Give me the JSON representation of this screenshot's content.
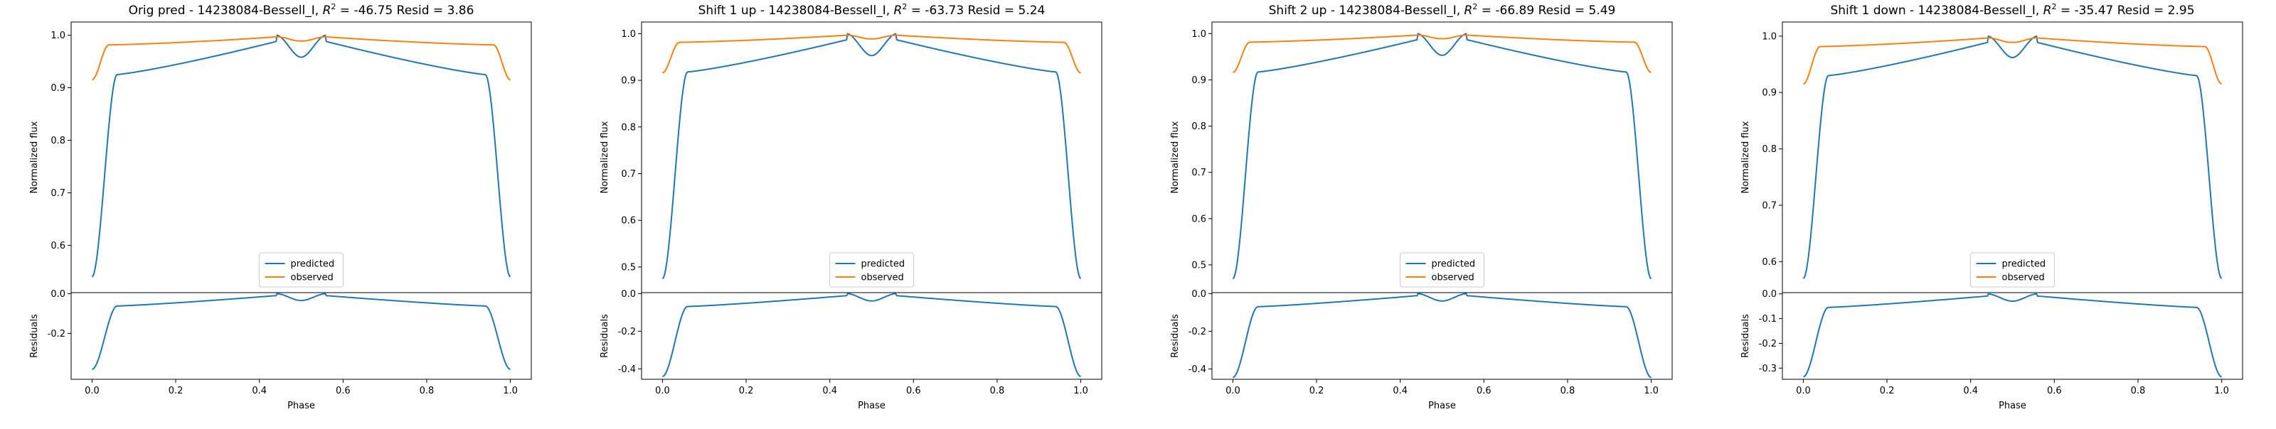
{
  "colors": {
    "predicted": "#1f77b4",
    "observed": "#ff7f0e"
  },
  "chart_data": [
    {
      "type": "line",
      "title_text": "Orig pred - 14238084-Bessell_I, ",
      "title_r2": "R",
      "title_sup": "2",
      "title_tail": " = -46.75 Resid = 3.86",
      "xlabel": "Phase",
      "ylabel": "Normalized flux",
      "ylabel_resid": "Residuals",
      "legend": [
        "predicted",
        "observed"
      ],
      "legend_position": "lower-center",
      "xlim": [
        -0.05,
        1.05
      ],
      "ylim": [
        0.51,
        1.025
      ],
      "ylim_resid": [
        -0.43,
        0.005
      ],
      "xticks": [
        "0.0",
        "0.2",
        "0.4",
        "0.6",
        "0.8",
        "1.0"
      ],
      "yticks": [
        "0.6",
        "0.7",
        "0.8",
        "0.9",
        "1.0"
      ],
      "yticks_resid": [
        "0.0",
        "-0.2"
      ],
      "pred_params": {
        "min": 0.54,
        "base": 0.925,
        "dip": 0.958
      },
      "obs_params": {
        "min": 0.915,
        "plat": 0.981
      },
      "predicted_samples": [
        [
          0.0,
          0.54
        ],
        [
          0.03,
          0.77
        ],
        [
          0.06,
          0.925
        ],
        [
          0.2,
          0.94
        ],
        [
          0.44,
          1.0
        ],
        [
          0.5,
          0.958
        ],
        [
          0.56,
          1.0
        ],
        [
          0.8,
          0.94
        ],
        [
          0.94,
          0.925
        ],
        [
          0.97,
          0.77
        ],
        [
          1.0,
          0.54
        ]
      ],
      "observed_samples": [
        [
          0.0,
          0.915
        ],
        [
          0.03,
          0.975
        ],
        [
          0.06,
          0.981
        ],
        [
          0.44,
          1.0
        ],
        [
          0.5,
          0.99
        ],
        [
          0.56,
          1.0
        ],
        [
          0.94,
          0.981
        ],
        [
          0.97,
          0.975
        ],
        [
          1.0,
          0.915
        ]
      ],
      "residual_samples": [
        [
          0.0,
          -0.38
        ],
        [
          0.03,
          -0.2
        ],
        [
          0.06,
          -0.06
        ],
        [
          0.44,
          0.0
        ],
        [
          0.5,
          -0.032
        ],
        [
          0.56,
          0.0
        ],
        [
          0.94,
          -0.06
        ],
        [
          0.97,
          -0.2
        ],
        [
          1.0,
          -0.38
        ]
      ]
    },
    {
      "type": "line",
      "title_text": "Shift 1 up - 14238084-Bessell_I, ",
      "title_r2": "R",
      "title_sup": "2",
      "title_tail": " = -63.73 Resid = 5.24",
      "xlabel": "Phase",
      "ylabel": "Normalized flux",
      "ylabel_resid": "Residuals",
      "legend": [
        "predicted",
        "observed"
      ],
      "legend_position": "lower-center",
      "xlim": [
        -0.05,
        1.05
      ],
      "ylim": [
        0.445,
        1.025
      ],
      "ylim_resid": [
        -0.455,
        0.005
      ],
      "xticks": [
        "0.0",
        "0.2",
        "0.4",
        "0.6",
        "0.8",
        "1.0"
      ],
      "yticks": [
        "0.5",
        "0.6",
        "0.7",
        "0.8",
        "0.9",
        "1.0"
      ],
      "yticks_resid": [
        "0.0",
        "-0.2",
        "-0.4"
      ],
      "pred_params": {
        "min": 0.475,
        "base": 0.918,
        "dip": 0.953
      },
      "obs_params": {
        "min": 0.916,
        "plat": 0.981
      },
      "predicted_samples": [
        [
          0.0,
          0.475
        ],
        [
          0.03,
          0.75
        ],
        [
          0.06,
          0.918
        ],
        [
          0.2,
          0.935
        ],
        [
          0.44,
          1.0
        ],
        [
          0.5,
          0.953
        ],
        [
          0.56,
          1.0
        ],
        [
          0.8,
          0.935
        ],
        [
          0.94,
          0.918
        ],
        [
          0.97,
          0.75
        ],
        [
          1.0,
          0.475
        ]
      ],
      "observed_samples": [
        [
          0.0,
          0.916
        ],
        [
          0.03,
          0.975
        ],
        [
          0.06,
          0.981
        ],
        [
          0.44,
          1.0
        ],
        [
          0.5,
          0.99
        ],
        [
          0.56,
          1.0
        ],
        [
          0.94,
          0.981
        ],
        [
          0.97,
          0.975
        ],
        [
          1.0,
          0.916
        ]
      ],
      "residual_samples": [
        [
          0.0,
          -0.44
        ],
        [
          0.03,
          -0.22
        ],
        [
          0.06,
          -0.063
        ],
        [
          0.44,
          0.0
        ],
        [
          0.5,
          -0.037
        ],
        [
          0.56,
          0.0
        ],
        [
          0.94,
          -0.063
        ],
        [
          0.97,
          -0.22
        ],
        [
          1.0,
          -0.44
        ]
      ]
    },
    {
      "type": "line",
      "title_text": "Shift 2 up - 14238084-Bessell_I, ",
      "title_r2": "R",
      "title_sup": "2",
      "title_tail": " = -66.89 Resid = 5.49",
      "xlabel": "Phase",
      "ylabel": "Normalized flux",
      "ylabel_resid": "Residuals",
      "legend": [
        "predicted",
        "observed"
      ],
      "legend_position": "lower-center",
      "xlim": [
        -0.05,
        1.05
      ],
      "ylim": [
        0.44,
        1.025
      ],
      "ylim_resid": [
        -0.455,
        0.005
      ],
      "xticks": [
        "0.0",
        "0.2",
        "0.4",
        "0.6",
        "0.8",
        "1.0"
      ],
      "yticks": [
        "0.5",
        "0.6",
        "0.7",
        "0.8",
        "0.9",
        "1.0"
      ],
      "yticks_resid": [
        "0.0",
        "-0.2",
        "-0.4"
      ],
      "pred_params": {
        "min": 0.47,
        "base": 0.917,
        "dip": 0.953
      },
      "obs_params": {
        "min": 0.916,
        "plat": 0.981
      },
      "predicted_samples": [
        [
          0.0,
          0.47
        ],
        [
          0.03,
          0.75
        ],
        [
          0.06,
          0.917
        ],
        [
          0.2,
          0.935
        ],
        [
          0.44,
          1.0
        ],
        [
          0.5,
          0.953
        ],
        [
          0.56,
          1.0
        ],
        [
          0.8,
          0.935
        ],
        [
          0.94,
          0.917
        ],
        [
          0.97,
          0.75
        ],
        [
          1.0,
          0.47
        ]
      ],
      "observed_samples": [
        [
          0.0,
          0.916
        ],
        [
          0.03,
          0.975
        ],
        [
          0.06,
          0.981
        ],
        [
          0.44,
          1.0
        ],
        [
          0.5,
          0.99
        ],
        [
          0.56,
          1.0
        ],
        [
          0.94,
          0.981
        ],
        [
          0.97,
          0.975
        ],
        [
          1.0,
          0.916
        ]
      ],
      "residual_samples": [
        [
          0.0,
          -0.445
        ],
        [
          0.03,
          -0.22
        ],
        [
          0.06,
          -0.064
        ],
        [
          0.44,
          0.0
        ],
        [
          0.5,
          -0.037
        ],
        [
          0.56,
          0.0
        ],
        [
          0.94,
          -0.064
        ],
        [
          0.97,
          -0.22
        ],
        [
          1.0,
          -0.445
        ]
      ]
    },
    {
      "type": "line",
      "title_text": "Shift 1 down - 14238084-Bessell_I, ",
      "title_r2": "R",
      "title_sup": "2",
      "title_tail": " = -35.47 Resid = 2.95",
      "xlabel": "Phase",
      "ylabel": "Normalized flux",
      "ylabel_resid": "Residuals",
      "legend": [
        "predicted",
        "observed"
      ],
      "legend_position": "lower-center",
      "xlim": [
        -0.05,
        1.05
      ],
      "ylim": [
        0.545,
        1.025
      ],
      "ylim_resid": [
        -0.345,
        0.005
      ],
      "xticks": [
        "0.0",
        "0.2",
        "0.4",
        "0.6",
        "0.8",
        "1.0"
      ],
      "yticks": [
        "0.6",
        "0.7",
        "0.8",
        "0.9",
        "1.0"
      ],
      "yticks_resid": [
        "0.0",
        "-0.1",
        "-0.2",
        "-0.3"
      ],
      "pred_params": {
        "min": 0.57,
        "base": 0.93,
        "dip": 0.962
      },
      "obs_params": {
        "min": 0.915,
        "plat": 0.981
      },
      "predicted_samples": [
        [
          0.0,
          0.57
        ],
        [
          0.03,
          0.79
        ],
        [
          0.06,
          0.93
        ],
        [
          0.2,
          0.945
        ],
        [
          0.44,
          1.0
        ],
        [
          0.5,
          0.962
        ],
        [
          0.56,
          1.0
        ],
        [
          0.8,
          0.945
        ],
        [
          0.94,
          0.93
        ],
        [
          0.97,
          0.79
        ],
        [
          1.0,
          0.57
        ]
      ],
      "observed_samples": [
        [
          0.0,
          0.915
        ],
        [
          0.03,
          0.975
        ],
        [
          0.06,
          0.981
        ],
        [
          0.44,
          1.0
        ],
        [
          0.5,
          0.99
        ],
        [
          0.56,
          1.0
        ],
        [
          0.94,
          0.981
        ],
        [
          0.97,
          0.975
        ],
        [
          1.0,
          0.915
        ]
      ],
      "residual_samples": [
        [
          0.0,
          -0.335
        ],
        [
          0.03,
          -0.18
        ],
        [
          0.06,
          -0.052
        ],
        [
          0.44,
          0.0
        ],
        [
          0.5,
          -0.028
        ],
        [
          0.56,
          0.0
        ],
        [
          0.94,
          -0.052
        ],
        [
          0.97,
          -0.18
        ],
        [
          1.0,
          -0.335
        ]
      ]
    }
  ]
}
